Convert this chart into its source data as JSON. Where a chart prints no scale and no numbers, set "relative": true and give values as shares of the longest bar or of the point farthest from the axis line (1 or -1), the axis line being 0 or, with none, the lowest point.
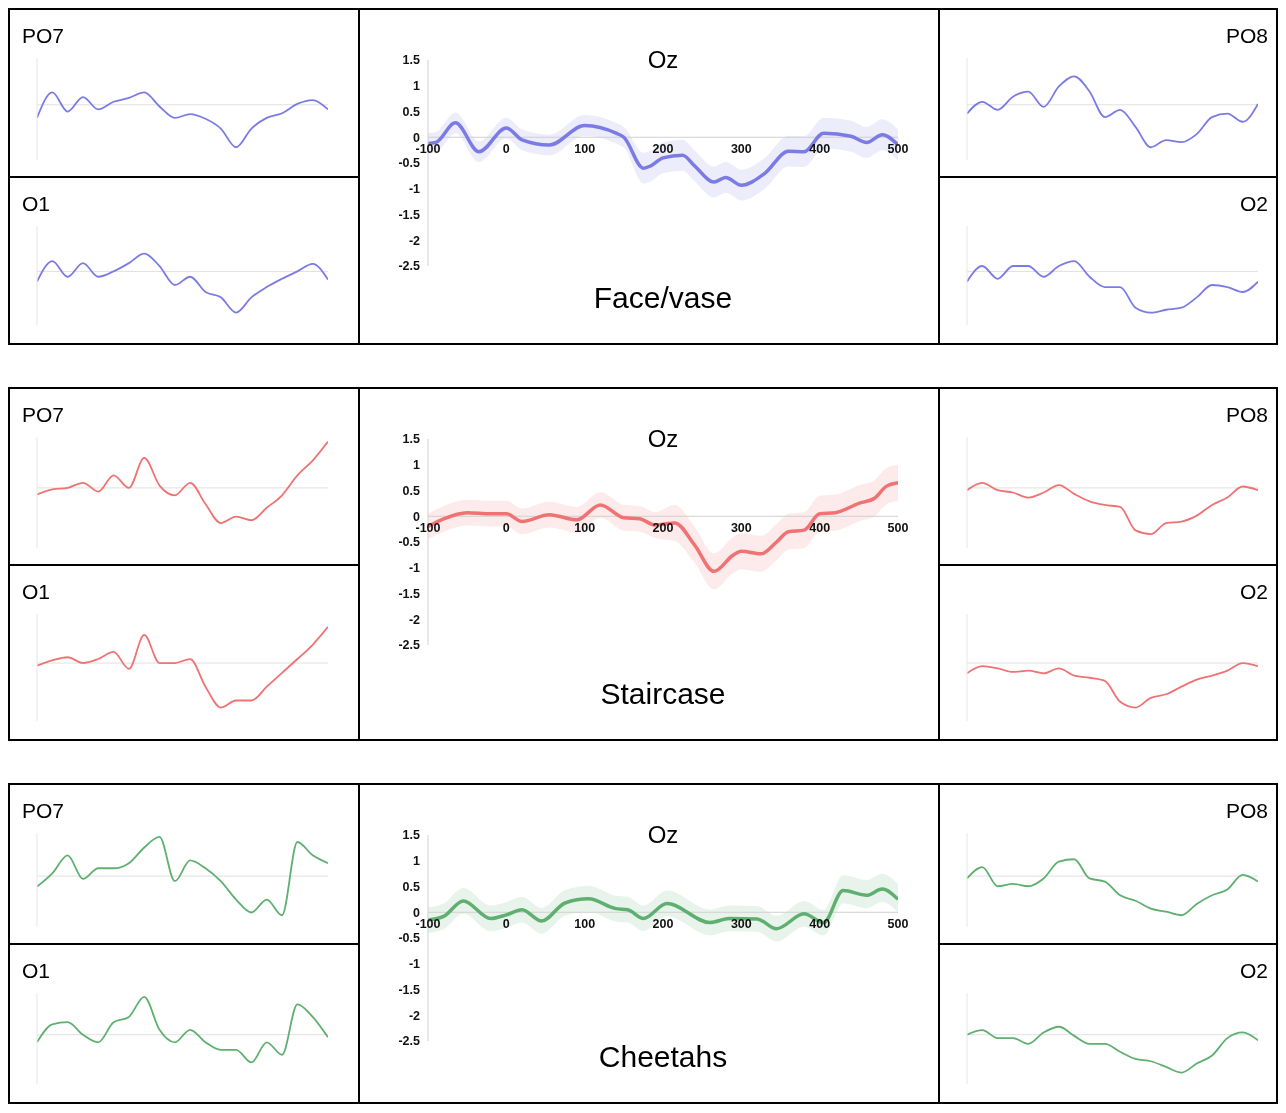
{
  "chart_data": [
    {
      "type": "line",
      "title": "PO7",
      "relative": true,
      "categories": [
        null,
        null,
        null,
        null,
        null,
        null,
        null,
        null,
        null,
        null,
        null,
        null,
        null,
        null,
        null,
        null,
        null,
        null,
        null,
        null
      ],
      "series": [
        {
          "color": "#7b7be6",
          "values": [
            -0.31,
            0.29,
            -0.16,
            0.18,
            -0.11,
            0.07,
            0.16,
            0.29,
            -0.04,
            -0.31,
            -0.22,
            -0.33,
            -0.56,
            -1,
            -0.56,
            -0.31,
            -0.2,
            0.02,
            0.11,
            -0.11
          ]
        }
      ]
    },
    {
      "type": "line",
      "title": "Oz",
      "annotations": [
        "Face/vase"
      ],
      "x": [
        -100,
        -90,
        -65,
        -35,
        0,
        20,
        55,
        100,
        140,
        150,
        175,
        185,
        200,
        225,
        240,
        265,
        280,
        300,
        330,
        360,
        380,
        405,
        440,
        460,
        480,
        500
      ],
      "series": [
        {
          "color": "#7b7be6",
          "values": [
            -0.12,
            -0.1,
            0.28,
            -0.28,
            0.18,
            -0.05,
            -0.15,
            0.23,
            0.08,
            0,
            -0.6,
            -0.55,
            -0.4,
            -0.35,
            -0.55,
            -0.87,
            -0.78,
            -0.93,
            -0.7,
            -0.27,
            -0.28,
            0.08,
            0.02,
            -0.1,
            0.05,
            -0.15
          ],
          "upper": [
            0.08,
            0.1,
            0.48,
            -0.08,
            0.38,
            0.15,
            0.05,
            0.43,
            0.28,
            0.2,
            -0.3,
            -0.25,
            -0.1,
            -0.05,
            -0.25,
            -0.57,
            -0.48,
            -0.63,
            -0.4,
            0.03,
            0.02,
            0.38,
            0.32,
            0.2,
            0.35,
            0.15
          ],
          "lower": [
            -0.32,
            -0.3,
            0.08,
            -0.48,
            -0.02,
            -0.25,
            -0.35,
            0.03,
            -0.12,
            -0.2,
            -0.9,
            -0.85,
            -0.7,
            -0.65,
            -0.85,
            -1.17,
            -1.08,
            -1.23,
            -1.0,
            -0.57,
            -0.58,
            -0.22,
            -0.28,
            -0.4,
            -0.25,
            -0.45
          ]
        }
      ],
      "xlim": [
        -100,
        500
      ],
      "xticks": [
        -100,
        0,
        100,
        200,
        300,
        400,
        500
      ],
      "ylim": [
        -2.5,
        1.5
      ],
      "yticks": [
        -2.5,
        -2,
        -1.5,
        -1,
        -0.5,
        0,
        0.5,
        1,
        1.5
      ]
    },
    {
      "type": "line",
      "title": "PO8",
      "relative": true,
      "categories": [
        null,
        null,
        null,
        null,
        null,
        null,
        null,
        null,
        null,
        null,
        null,
        null,
        null,
        null,
        null,
        null,
        null,
        null,
        null,
        null
      ],
      "series": [
        {
          "color": "#7b7be6",
          "values": [
            -0.21,
            0.07,
            -0.12,
            0.19,
            0.31,
            -0.05,
            0.43,
            0.67,
            0.31,
            -0.29,
            -0.12,
            -0.52,
            -1,
            -0.83,
            -0.88,
            -0.69,
            -0.29,
            -0.21,
            -0.4,
            0.02
          ]
        }
      ]
    },
    {
      "type": "line",
      "title": "O1",
      "relative": true,
      "categories": [
        null,
        null,
        null,
        null,
        null,
        null,
        null,
        null,
        null,
        null,
        null,
        null,
        null,
        null,
        null,
        null,
        null,
        null,
        null,
        null
      ],
      "series": [
        {
          "color": "#7b7be6",
          "values": [
            -0.25,
            0.25,
            -0.13,
            0.2,
            -0.13,
            0,
            0.2,
            0.43,
            0.13,
            -0.33,
            -0.13,
            -0.5,
            -0.63,
            -1,
            -0.63,
            -0.38,
            -0.18,
            0,
            0.18,
            -0.2
          ]
        }
      ]
    },
    {
      "type": "line",
      "title": "O2",
      "relative": true,
      "categories": [
        null,
        null,
        null,
        null,
        null,
        null,
        null,
        null,
        null,
        null,
        null,
        null,
        null,
        null,
        null,
        null,
        null,
        null,
        null,
        null
      ],
      "series": [
        {
          "color": "#7b7be6",
          "values": [
            -0.25,
            0.13,
            -0.18,
            0.13,
            0.13,
            -0.13,
            0.13,
            0.25,
            -0.13,
            -0.38,
            -0.38,
            -0.88,
            -1,
            -0.93,
            -0.88,
            -0.63,
            -0.33,
            -0.38,
            -0.5,
            -0.25
          ]
        }
      ]
    },
    {
      "type": "line",
      "title": "PO7",
      "relative": true,
      "categories": [
        null,
        null,
        null,
        null,
        null,
        null,
        null,
        null,
        null,
        null,
        null,
        null,
        null,
        null,
        null,
        null,
        null,
        null,
        null,
        null
      ],
      "series": [
        {
          "color": "#f07272",
          "values": [
            -0.14,
            -0.03,
            0,
            0.11,
            -0.08,
            0.27,
            0,
            0.65,
            0.05,
            -0.16,
            0.11,
            -0.35,
            -0.76,
            -0.62,
            -0.7,
            -0.43,
            -0.16,
            0.27,
            0.59,
            1
          ]
        }
      ]
    },
    {
      "type": "line",
      "title": "Oz",
      "annotations": [
        "Staircase"
      ],
      "x": [
        -100,
        -80,
        -50,
        -20,
        0,
        20,
        55,
        90,
        120,
        150,
        170,
        190,
        215,
        240,
        265,
        290,
        300,
        325,
        345,
        360,
        380,
        400,
        420,
        450,
        470,
        485,
        500
      ],
      "series": [
        {
          "color": "#f07272",
          "values": [
            -0.2,
            -0.05,
            0.07,
            0.05,
            0.05,
            -0.1,
            0.03,
            -0.07,
            0.22,
            -0.03,
            -0.05,
            -0.17,
            -0.13,
            -0.55,
            -1.07,
            -0.75,
            -0.68,
            -0.73,
            -0.5,
            -0.3,
            -0.27,
            0.05,
            0.07,
            0.25,
            0.35,
            0.58,
            0.65
          ],
          "upper": [
            0.05,
            0.2,
            0.32,
            0.3,
            0.3,
            0.15,
            0.28,
            0.18,
            0.47,
            0.22,
            0.2,
            0.08,
            0.22,
            -0.2,
            -0.72,
            -0.4,
            -0.33,
            -0.38,
            -0.15,
            0.05,
            0.08,
            0.4,
            0.42,
            0.6,
            0.7,
            0.93,
            1.0
          ],
          "lower": [
            -0.45,
            -0.3,
            -0.18,
            -0.2,
            -0.2,
            -0.35,
            -0.22,
            -0.32,
            -0.03,
            -0.28,
            -0.3,
            -0.42,
            -0.48,
            -0.9,
            -1.42,
            -1.1,
            -1.03,
            -1.08,
            -0.85,
            -0.65,
            -0.62,
            -0.3,
            -0.28,
            -0.1,
            0,
            0.23,
            0.3
          ]
        }
      ],
      "xlim": [
        -100,
        500
      ],
      "xticks": [
        -100,
        0,
        100,
        200,
        300,
        400,
        500
      ],
      "ylim": [
        -2.5,
        1.5
      ],
      "yticks": [
        -2.5,
        -2,
        -1.5,
        -1,
        -0.5,
        0,
        0.5,
        1,
        1.5
      ]
    },
    {
      "type": "line",
      "title": "PO8",
      "relative": true,
      "categories": [
        null,
        null,
        null,
        null,
        null,
        null,
        null,
        null,
        null,
        null,
        null,
        null,
        null,
        null,
        null,
        null,
        null,
        null,
        null,
        null
      ],
      "series": [
        {
          "color": "#f07272",
          "values": [
            -0.05,
            0.11,
            -0.05,
            -0.1,
            -0.21,
            -0.1,
            0.06,
            -0.13,
            -0.29,
            -0.37,
            -0.41,
            -0.92,
            -1,
            -0.76,
            -0.73,
            -0.6,
            -0.37,
            -0.21,
            0.03,
            -0.05
          ]
        }
      ]
    },
    {
      "type": "line",
      "title": "O1",
      "relative": true,
      "categories": [
        null,
        null,
        null,
        null,
        null,
        null,
        null,
        null,
        null,
        null,
        null,
        null,
        null,
        null,
        null,
        null,
        null,
        null,
        null,
        null
      ],
      "series": [
        {
          "color": "#f07272",
          "values": [
            -0.06,
            0.06,
            0.13,
            0,
            0.09,
            0.25,
            -0.13,
            0.63,
            0,
            0,
            0.09,
            -0.53,
            -1,
            -0.84,
            -0.84,
            -0.53,
            -0.22,
            0.09,
            0.41,
            0.81
          ]
        }
      ]
    },
    {
      "type": "line",
      "title": "O2",
      "relative": true,
      "categories": [
        null,
        null,
        null,
        null,
        null,
        null,
        null,
        null,
        null,
        null,
        null,
        null,
        null,
        null,
        null,
        null,
        null,
        null,
        null,
        null
      ],
      "series": [
        {
          "color": "#f07272",
          "values": [
            -0.23,
            -0.07,
            -0.12,
            -0.2,
            -0.17,
            -0.23,
            -0.12,
            -0.28,
            -0.33,
            -0.4,
            -0.87,
            -1,
            -0.78,
            -0.7,
            -0.53,
            -0.37,
            -0.28,
            -0.17,
            0,
            -0.07
          ]
        }
      ]
    },
    {
      "type": "line",
      "title": "PO7",
      "relative": true,
      "categories": [
        null,
        null,
        null,
        null,
        null,
        null,
        null,
        null,
        null,
        null,
        null,
        null,
        null,
        null,
        null,
        null,
        null,
        null,
        null,
        null
      ],
      "series": [
        {
          "color": "#5fb070",
          "values": [
            -0.27,
            0.07,
            0.53,
            -0.07,
            0.2,
            0.2,
            0.33,
            0.73,
            1,
            -0.13,
            0.4,
            0.2,
            -0.13,
            -0.6,
            -0.93,
            -0.6,
            -1,
            0.87,
            0.53,
            0.33
          ]
        }
      ]
    },
    {
      "type": "line",
      "title": "Oz",
      "annotations": [
        "Cheetahs"
      ],
      "x": [
        -100,
        -80,
        -55,
        -20,
        0,
        20,
        45,
        75,
        105,
        140,
        155,
        175,
        205,
        260,
        285,
        320,
        345,
        380,
        405,
        430,
        460,
        480,
        500
      ],
      "series": [
        {
          "color": "#5fb070",
          "values": [
            -0.15,
            -0.08,
            0.22,
            -0.12,
            -0.05,
            0.05,
            -0.17,
            0.18,
            0.26,
            0.07,
            0.05,
            -0.12,
            0.17,
            -0.2,
            -0.12,
            -0.13,
            -0.32,
            -0.03,
            -0.2,
            0.42,
            0.33,
            0.45,
            0.25
          ],
          "upper": [
            0.1,
            0.17,
            0.47,
            0.13,
            0.2,
            0.3,
            0.08,
            0.43,
            0.51,
            0.32,
            0.3,
            0.13,
            0.42,
            0.05,
            0.13,
            0.12,
            -0.07,
            0.22,
            0.05,
            0.72,
            0.63,
            0.75,
            0.55
          ],
          "lower": [
            -0.4,
            -0.33,
            -0.03,
            -0.37,
            -0.3,
            -0.2,
            -0.42,
            -0.07,
            0.01,
            -0.18,
            -0.2,
            -0.37,
            -0.08,
            -0.45,
            -0.37,
            -0.38,
            -0.57,
            -0.28,
            -0.45,
            0.17,
            0.08,
            0.2,
            0
          ]
        }
      ],
      "xlim": [
        -100,
        500
      ],
      "xticks": [
        -100,
        0,
        100,
        200,
        300,
        400,
        500
      ],
      "ylim": [
        -2.5,
        1.5
      ],
      "yticks": [
        -2.5,
        -2,
        -1.5,
        -1,
        -0.5,
        0,
        0.5,
        1,
        1.5
      ]
    },
    {
      "type": "line",
      "title": "PO8",
      "relative": true,
      "categories": [
        null,
        null,
        null,
        null,
        null,
        null,
        null,
        null,
        null,
        null,
        null,
        null,
        null,
        null,
        null,
        null,
        null,
        null,
        null,
        null
      ],
      "series": [
        {
          "color": "#5fb070",
          "values": [
            -0.06,
            0.23,
            -0.26,
            -0.2,
            -0.26,
            -0.06,
            0.37,
            0.43,
            -0.06,
            -0.14,
            -0.49,
            -0.63,
            -0.83,
            -0.91,
            -1,
            -0.71,
            -0.49,
            -0.34,
            0.03,
            -0.14
          ]
        }
      ]
    },
    {
      "type": "line",
      "title": "O1",
      "relative": true,
      "categories": [
        null,
        null,
        null,
        null,
        null,
        null,
        null,
        null,
        null,
        null,
        null,
        null,
        null,
        null,
        null,
        null,
        null,
        null,
        null,
        null
      ],
      "series": [
        {
          "color": "#5fb070",
          "values": [
            -0.2,
            0.27,
            0.33,
            0,
            -0.2,
            0.33,
            0.47,
            1,
            0.13,
            -0.2,
            0.13,
            -0.2,
            -0.4,
            -0.4,
            -0.73,
            -0.2,
            -0.53,
            0.8,
            0.47,
            -0.07
          ]
        }
      ]
    },
    {
      "type": "line",
      "title": "O2",
      "relative": true,
      "categories": [
        null,
        null,
        null,
        null,
        null,
        null,
        null,
        null,
        null,
        null,
        null,
        null,
        null,
        null,
        null,
        null,
        null,
        null,
        null,
        null
      ],
      "series": [
        {
          "color": "#5fb070",
          "values": [
            0,
            0.12,
            -0.09,
            -0.09,
            -0.24,
            0.06,
            0.21,
            -0.03,
            -0.24,
            -0.24,
            -0.45,
            -0.64,
            -0.7,
            -0.85,
            -1,
            -0.76,
            -0.55,
            -0.09,
            0.06,
            -0.15
          ]
        }
      ]
    }
  ]
}
